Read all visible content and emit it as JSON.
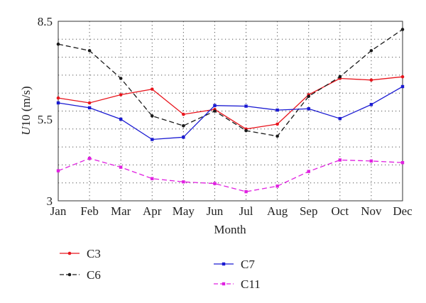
{
  "chart_data": {
    "type": "line",
    "xlabel": "Month",
    "ylabel_prefix": "U",
    "ylabel_rest": "10 (m/s)",
    "categories": [
      "Jan",
      "Feb",
      "Mar",
      "Apr",
      "May",
      "Jun",
      "Jul",
      "Aug",
      "Sep",
      "Oct",
      "Nov",
      "Dec"
    ],
    "ylim": [
      3,
      8.5
    ],
    "yticks": [
      "3",
      "5.5",
      "8.5"
    ],
    "grid": true,
    "legend_position": "bottom",
    "series": [
      {
        "name": "C3",
        "color": "#e8141c",
        "dash": "solid",
        "marker": "circle",
        "values": [
          6.15,
          6.0,
          6.25,
          6.42,
          5.65,
          5.8,
          5.2,
          5.35,
          6.25,
          6.75,
          6.7,
          6.8
        ]
      },
      {
        "name": "C6",
        "color": "#1a1a1a",
        "dash": "dashed",
        "marker": "circle",
        "values": [
          7.8,
          7.6,
          6.75,
          5.6,
          5.3,
          5.75,
          5.15,
          4.98,
          6.2,
          6.8,
          7.6,
          8.25
        ]
      },
      {
        "name": "C7",
        "color": "#1a1ad2",
        "dash": "solid",
        "marker": "square",
        "values": [
          6.0,
          5.85,
          5.5,
          4.88,
          4.95,
          5.92,
          5.9,
          5.78,
          5.82,
          5.52,
          5.95,
          6.5
        ]
      },
      {
        "name": "C11",
        "color": "#e020e0",
        "dash": "dashed",
        "marker": "square",
        "values": [
          3.92,
          4.3,
          4.03,
          3.68,
          3.58,
          3.53,
          3.28,
          3.45,
          3.9,
          4.25,
          4.22,
          4.17
        ]
      }
    ]
  }
}
